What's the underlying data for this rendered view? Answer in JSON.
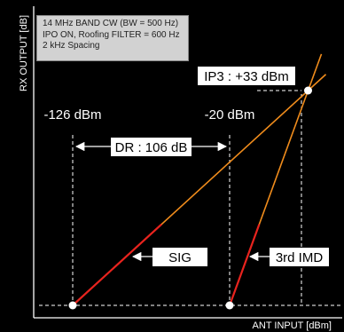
{
  "chart_data": {
    "type": "line",
    "title": "",
    "xlabel": "ANT INPUT [dBm]",
    "ylabel": "RX OUTPUT [dB]",
    "conditions": [
      "14 MHz BAND CW (BW = 500 Hz)",
      "IPO ON, Roofing FILTER = 600 Hz",
      "2 kHz Spacing"
    ],
    "x_range_dbm": [
      -140,
      45
    ],
    "y_range_db": [
      -140,
      45
    ],
    "grid": false,
    "series": [
      {
        "name": "SIG",
        "slope": 1,
        "color": "#f08c1c",
        "highlight_color": "#e8231e",
        "points": [
          {
            "x": -126,
            "y": -126
          },
          {
            "x": 33,
            "y": 33
          }
        ]
      },
      {
        "name": "3rd IMD",
        "slope": 3,
        "color": "#f08c1c",
        "highlight_color": "#e8231e",
        "points": [
          {
            "x": -20,
            "y": -126
          },
          {
            "x": 33,
            "y": 33
          }
        ]
      }
    ],
    "markers": [
      {
        "label": "-126 dBm",
        "x": -126
      },
      {
        "label": "-20 dBm",
        "x": -20
      }
    ],
    "noise_floor": -126,
    "intercept": {
      "label": "IP3 : +33 dBm",
      "x": 33,
      "y": 33
    },
    "dynamic_range": {
      "label": "DR : 106 dB",
      "from": -126,
      "to": -20,
      "value": 106
    }
  }
}
